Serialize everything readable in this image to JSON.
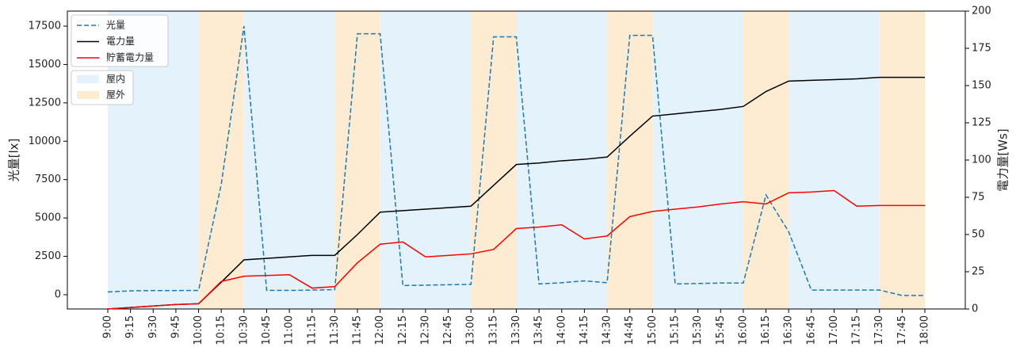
{
  "chart_data": {
    "type": "line",
    "ylabel": "光量[lx]",
    "y2label": "電力量[Ws]",
    "categories": [
      "9:00",
      "9:15",
      "9:30",
      "9:45",
      "10:00",
      "10:15",
      "10:30",
      "10:45",
      "11:00",
      "11:15",
      "11:30",
      "11:45",
      "12:00",
      "12:15",
      "12:30",
      "12:45",
      "13:00",
      "13:15",
      "13:30",
      "13:45",
      "14:00",
      "14:15",
      "14:30",
      "14:45",
      "15:00",
      "15:15",
      "15:30",
      "15:45",
      "16:00",
      "16:15",
      "16:30",
      "16:45",
      "17:00",
      "17:15",
      "17:30",
      "17:45",
      "18:00"
    ],
    "ylim": [
      -930,
      18480
    ],
    "yticks": [
      0,
      2500,
      5000,
      7500,
      10000,
      12500,
      15000,
      17500
    ],
    "y2lim": [
      0,
      200
    ],
    "y2ticks": [
      0,
      25,
      50,
      75,
      100,
      125,
      150,
      175,
      200
    ],
    "series": [
      {
        "name": "光量",
        "color": "#1f77b4",
        "dash": true,
        "values": [
          180,
          250,
          270,
          270,
          280,
          7200,
          17500,
          280,
          280,
          300,
          330,
          17000,
          17000,
          600,
          620,
          650,
          670,
          16800,
          16800,
          700,
          780,
          900,
          780,
          16900,
          16900,
          700,
          730,
          760,
          760,
          6500,
          4100,
          300,
          300,
          300,
          300,
          -50,
          -50
        ]
      },
      {
        "name": "電力量",
        "color": "#000000",
        "axis": "y2",
        "values": [
          0,
          1,
          2,
          3,
          3.5,
          18,
          33,
          34,
          35,
          36,
          36,
          50,
          65,
          66,
          67,
          68,
          69,
          83,
          97,
          98,
          99.5,
          100.5,
          102,
          116,
          129.5,
          131,
          132.5,
          134,
          136,
          146,
          153,
          153.5,
          154,
          154.5,
          155.5,
          155.5,
          155.5
        ]
      },
      {
        "name": "貯蓄電力量",
        "color": "#ff0000",
        "axis": "y2",
        "values": [
          0,
          1,
          2,
          3,
          3.5,
          18.5,
          22,
          22.5,
          23,
          14,
          15,
          31,
          43.5,
          45,
          35,
          36,
          37,
          40,
          54,
          55,
          56.5,
          47,
          49,
          62,
          65.5,
          67,
          68.5,
          70.5,
          72,
          70.5,
          78,
          78.5,
          79.5,
          69,
          69.5,
          69.5,
          69.5
        ]
      }
    ],
    "regions": [
      {
        "name": "屋内",
        "color": "#e4f2fb",
        "spans": [
          [
            "9:00",
            "10:00"
          ],
          [
            "10:30",
            "11:30"
          ],
          [
            "12:00",
            "13:00"
          ],
          [
            "13:30",
            "14:30"
          ],
          [
            "15:00",
            "16:00"
          ],
          [
            "16:30",
            "17:30"
          ]
        ]
      },
      {
        "name": "屋外",
        "color": "#fdecd2",
        "spans": [
          [
            "10:00",
            "10:30"
          ],
          [
            "11:30",
            "12:00"
          ],
          [
            "13:00",
            "13:30"
          ],
          [
            "14:30",
            "15:00"
          ],
          [
            "16:00",
            "16:30"
          ],
          [
            "17:30",
            "18:00"
          ]
        ]
      }
    ]
  }
}
